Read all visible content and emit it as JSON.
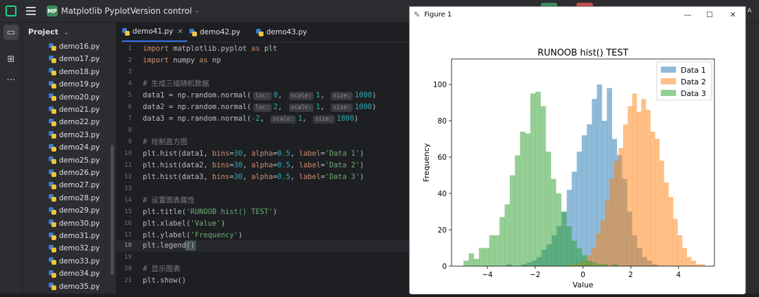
{
  "titlebar": {
    "project_badge": "MP",
    "project_name": "Matplotlib Pyplot",
    "vcs": "Version control",
    "right_fragment": "A"
  },
  "project_panel": {
    "title": "Project",
    "files": [
      "demo16.py",
      "demo17.py",
      "demo18.py",
      "demo19.py",
      "demo20.py",
      "demo21.py",
      "demo22.py",
      "demo23.py",
      "demo24.py",
      "demo25.py",
      "demo26.py",
      "demo27.py",
      "demo28.py",
      "demo29.py",
      "demo30.py",
      "demo31.py",
      "demo32.py",
      "demo33.py",
      "demo34.py",
      "demo35.py"
    ]
  },
  "editor": {
    "tabs": [
      {
        "label": "demo41.py",
        "active": true
      },
      {
        "label": "demo42.py",
        "active": false
      },
      {
        "label": "demo43.py",
        "active": false
      }
    ],
    "current_line": 18,
    "lines": {
      "l1": {
        "a": "import",
        "b": " matplotlib.pyplot ",
        "c": "as",
        "d": " plt"
      },
      "l2": {
        "a": "import",
        "b": " numpy ",
        "c": "as",
        "d": " np"
      },
      "l4": "# 生成三组随机数据",
      "l5": {
        "pre": "data1 = np.random.normal(",
        "h1": "loc:",
        "v1": "0",
        ", ": ", ",
        "h2": "scale:",
        "v2": "1",
        ",2": ", ",
        "h3": "size:",
        "v3": "1000",
        ")": ")"
      },
      "l6": {
        "pre": "data2 = np.random.normal(",
        "h1": "loc:",
        "v1": "2",
        ", ": ", ",
        "h2": "scale:",
        "v2": "1",
        ",2": ", ",
        "h3": "size:",
        "v3": "1000",
        ")": ")"
      },
      "l7": {
        "pre": "data3 = np.random.normal(",
        "v1": "-2",
        ", ": ", ",
        "h2": "scale:",
        "v2": "1",
        ",2": ", ",
        "h3": "size:",
        "v3": "1000",
        ")": ")"
      },
      "l9": "# 绘制直方图",
      "l10": {
        "pre": "plt.hist(data1, ",
        "k1": "bins",
        "e1": "=",
        "n1": "30",
        ", ": ", ",
        "k2": "alpha",
        "e2": "=",
        "n2": "0.5",
        ",2": ", ",
        "k3": "label",
        "e3": "=",
        "s": "'Data 1'",
        ")": ")"
      },
      "l11": {
        "pre": "plt.hist(data2, ",
        "k1": "bins",
        "e1": "=",
        "n1": "30",
        ", ": ", ",
        "k2": "alpha",
        "e2": "=",
        "n2": "0.5",
        ",2": ", ",
        "k3": "label",
        "e3": "=",
        "s": "'Data 2'",
        ")": ")"
      },
      "l12": {
        "pre": "plt.hist(data3, ",
        "k1": "bins",
        "e1": "=",
        "n1": "30",
        ", ": ", ",
        "k2": "alpha",
        "e2": "=",
        "n2": "0.5",
        ",2": ", ",
        "k3": "label",
        "e3": "=",
        "s": "'Data 3'",
        ")": ")"
      },
      "l14": "# 设置图表属性",
      "l15": {
        "pre": "plt.title(",
        "s": "'RUNOOB hist() TEST'",
        ")": ")"
      },
      "l16": {
        "pre": "plt.xlabel(",
        "s": "'Value'",
        ")": ")"
      },
      "l17": {
        "pre": "plt.ylabel(",
        "s": "'Frequency'",
        ")": ")"
      },
      "l18": {
        "pre": "plt.legend",
        "b": "()"
      },
      "l20": "# 显示图表",
      "l21": "plt.show()"
    }
  },
  "figure_window": {
    "title": "Figure 1",
    "min": "—",
    "max": "☐",
    "close": "✕"
  },
  "chart_data": {
    "type": "bar",
    "title": "RUNOOB hist() TEST",
    "xlabel": "Value",
    "ylabel": "Frequency",
    "xlim": [
      -5.5,
      5.5
    ],
    "ylim": [
      0,
      114
    ],
    "xticks": [
      -4,
      -2,
      0,
      2,
      4
    ],
    "yticks": [
      0,
      20,
      40,
      60,
      80,
      100
    ],
    "legend_position": "top-right",
    "series": [
      {
        "name": "Data 1",
        "color": "#1f77b4",
        "alpha": 0.5,
        "bin_edges_start": -3.2,
        "bin_width": 0.21,
        "values": [
          1,
          0,
          0,
          1,
          2,
          3,
          5,
          9,
          12,
          17,
          22,
          30,
          42,
          52,
          63,
          72,
          78,
          92,
          100,
          80,
          98,
          70,
          61,
          48,
          30,
          17,
          10,
          5,
          3,
          1
        ]
      },
      {
        "name": "Data 2",
        "color": "#ff7f0e",
        "alpha": 0.5,
        "bin_edges_start": -0.6,
        "bin_width": 0.19,
        "values": [
          1,
          1,
          2,
          3,
          6,
          10,
          18,
          25,
          36,
          48,
          58,
          65,
          78,
          88,
          95,
          85,
          92,
          86,
          74,
          70,
          58,
          46,
          38,
          26,
          17,
          10,
          5,
          3,
          1,
          1
        ]
      },
      {
        "name": "Data 3",
        "color": "#2ca02c",
        "alpha": 0.5,
        "bin_edges_start": -5.0,
        "bin_width": 0.215,
        "values": [
          3,
          7,
          4,
          10,
          10,
          17,
          17,
          27,
          34,
          50,
          61,
          74,
          73,
          95,
          96,
          88,
          63,
          48,
          40,
          30,
          22,
          14,
          10,
          6,
          3,
          2,
          1,
          1,
          0,
          1
        ]
      }
    ]
  }
}
